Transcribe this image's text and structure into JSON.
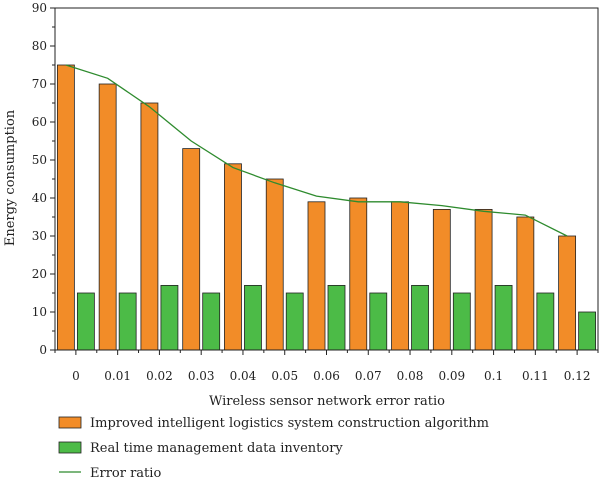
{
  "chart_data": {
    "type": "bar",
    "xlabel": "Wireless sensor network error ratio",
    "ylabel": "Energy consumption",
    "ylim": [
      0,
      90
    ],
    "yticks": [
      0,
      10,
      20,
      30,
      40,
      50,
      60,
      70,
      80,
      90
    ],
    "categories": [
      "0",
      "0.01",
      "0.02",
      "0.03",
      "0.04",
      "0.05",
      "0.06",
      "0.07",
      "0.08",
      "0.09",
      "0.1",
      "0.11",
      "0.12"
    ],
    "series": [
      {
        "name": "Improved intelligent logistics system construction algorithm",
        "kind": "bar",
        "color": "#f28c28",
        "values": [
          75,
          70,
          65,
          53,
          49,
          45,
          39,
          40,
          39,
          37,
          37,
          35,
          30
        ]
      },
      {
        "name": "Real time management data inventory",
        "kind": "bar",
        "color": "#4cbb47",
        "values": [
          15,
          15,
          17,
          15,
          17,
          15,
          17,
          15,
          17,
          15,
          17,
          15,
          10
        ]
      },
      {
        "name": "Error ratio",
        "kind": "line",
        "color": "#2e8b2e",
        "values": [
          75,
          71.5,
          64,
          55,
          48,
          44,
          40.5,
          39,
          39,
          38,
          36.5,
          35.5,
          30
        ]
      }
    ],
    "grid": false,
    "legend_position": "bottom-left"
  }
}
